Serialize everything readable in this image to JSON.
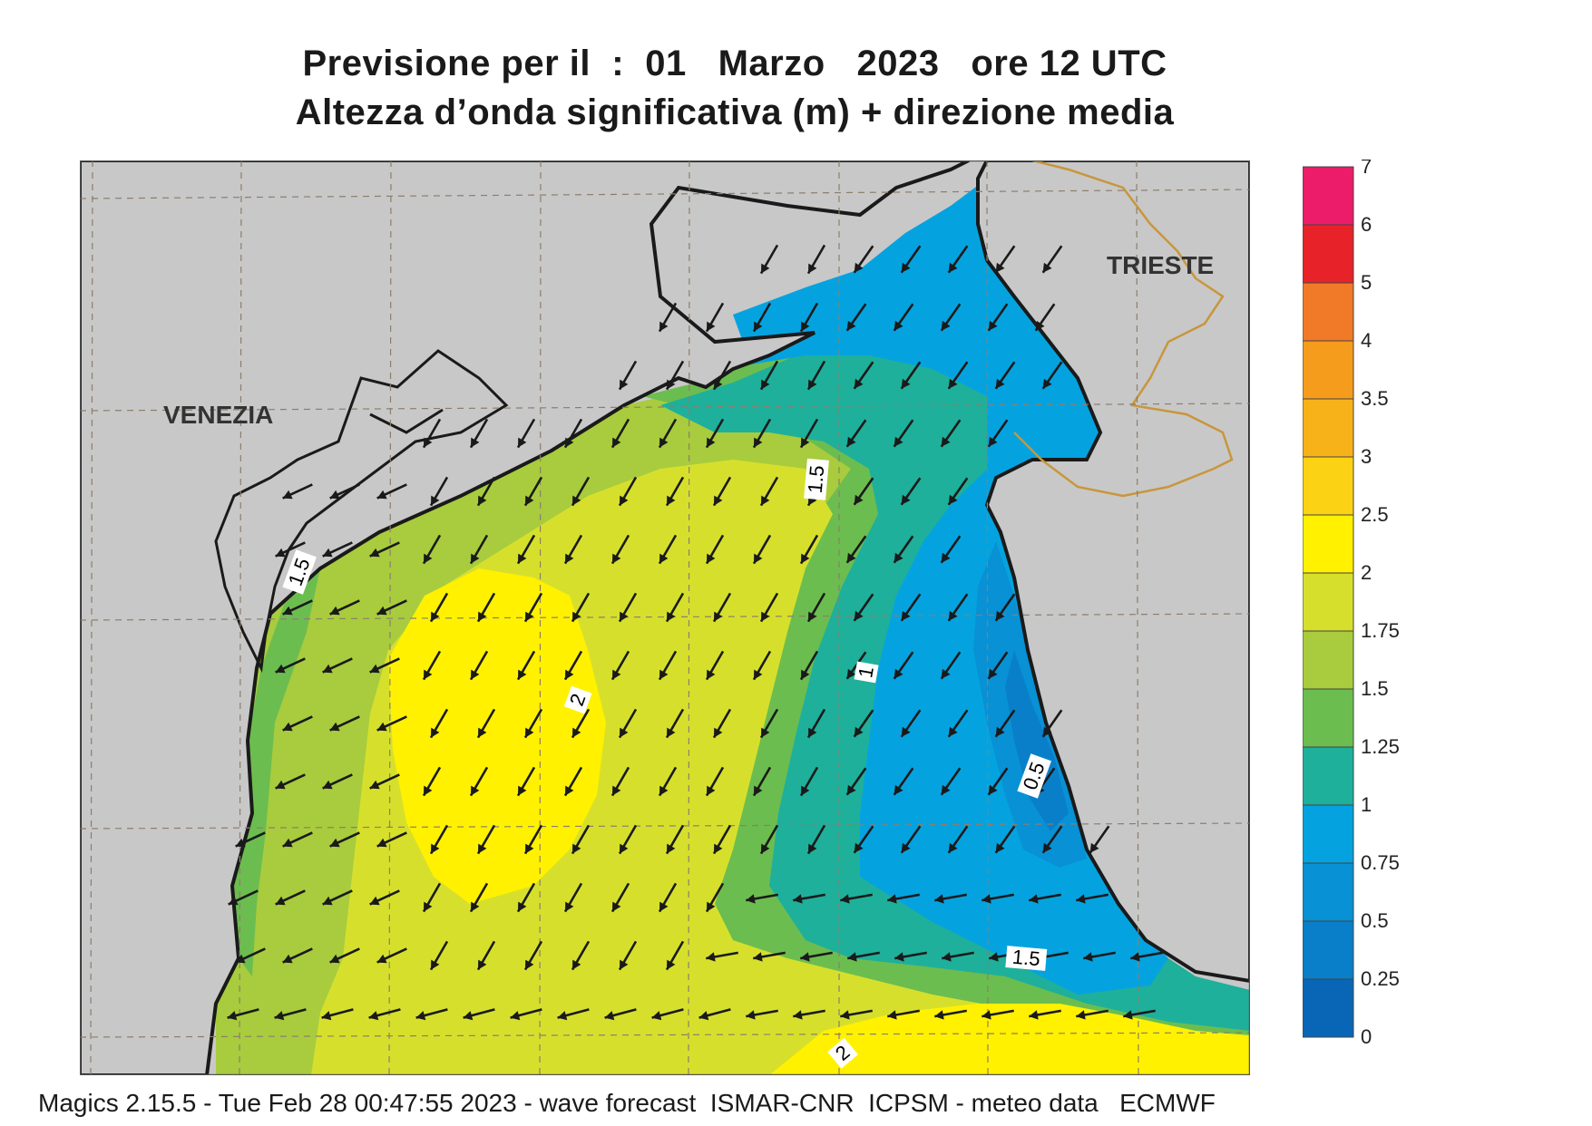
{
  "title": {
    "line1": "Previsione per il  :  01   Marzo   2023   ore 12 UTC",
    "line2": "Altezza d’onda significativa (m) + direzione media"
  },
  "footer": "Magics 2.15.5 - Tue Feb 28 00:47:55 2023 - wave forecast  ISMAR-CNR  ICPSM - meteo data   ECMWF",
  "places": [
    {
      "name": "VENEZIA"
    },
    {
      "name": "TRIESTE"
    }
  ],
  "contour_labels": [
    "1.5",
    "1.5",
    "2",
    "1",
    "0.5",
    "1.5",
    "2"
  ],
  "colorbar": {
    "ticks": [
      "7",
      "6",
      "5",
      "4",
      "3.5",
      "3",
      "2.5",
      "2",
      "1.75",
      "1.5",
      "1.25",
      "1",
      "0.75",
      "0.5",
      "0.25",
      "0"
    ],
    "colors": [
      "#ec1c6a",
      "#e82229",
      "#f07a27",
      "#f59c1c",
      "#f7b219",
      "#fbd314",
      "#fff100",
      "#d6e02c",
      "#a8cc3d",
      "#6cbd4f",
      "#1eb09b",
      "#04a3e0",
      "#0891d5",
      "#0a7fc9",
      "#0966b7"
    ]
  },
  "colors": {
    "land": "#c8c8c8",
    "coast": "#1a1a1a",
    "border": "#c8963c",
    "grid": "#8c7e6c",
    "arrow": "#1a1a1a"
  }
}
